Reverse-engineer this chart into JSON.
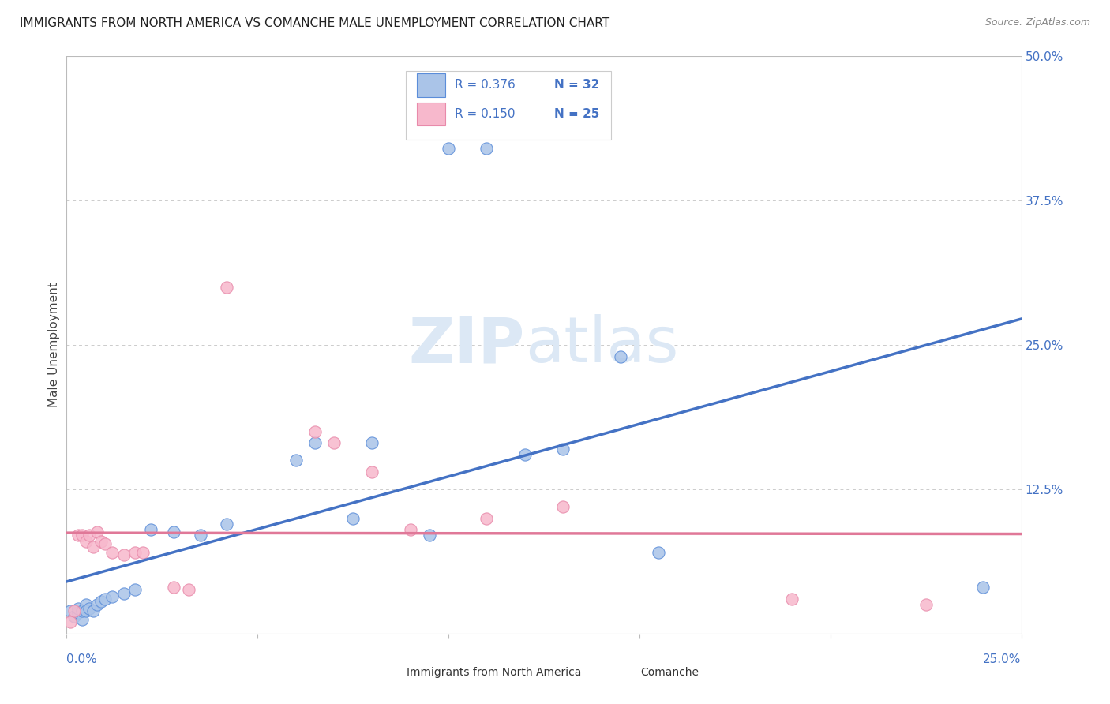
{
  "title": "IMMIGRANTS FROM NORTH AMERICA VS COMANCHE MALE UNEMPLOYMENT CORRELATION CHART",
  "source": "Source: ZipAtlas.com",
  "ylabel": "Male Unemployment",
  "ytick_values": [
    0.0,
    0.125,
    0.25,
    0.375,
    0.5
  ],
  "ytick_labels": [
    "",
    "12.5%",
    "25.0%",
    "37.5%",
    "50.0%"
  ],
  "xlim": [
    0.0,
    0.25
  ],
  "ylim": [
    0.0,
    0.5
  ],
  "blue_R": "0.376",
  "blue_N": "32",
  "pink_R": "0.150",
  "pink_N": "25",
  "blue_fill": "#aac4e8",
  "blue_edge": "#5b8dd9",
  "blue_line": "#4472c4",
  "pink_fill": "#f7b8cc",
  "pink_edge": "#e88aaa",
  "pink_line": "#e07898",
  "label_color": "#4472c4",
  "legend_label_blue": "Immigrants from North America",
  "legend_label_pink": "Comanche",
  "watermark_zip": "ZIP",
  "watermark_atlas": "atlas",
  "background_color": "#ffffff",
  "grid_color": "#cccccc",
  "blue_points": [
    [
      0.001,
      0.02
    ],
    [
      0.002,
      0.015
    ],
    [
      0.003,
      0.018
    ],
    [
      0.003,
      0.022
    ],
    [
      0.004,
      0.012
    ],
    [
      0.004,
      0.02
    ],
    [
      0.005,
      0.025
    ],
    [
      0.005,
      0.02
    ],
    [
      0.006,
      0.022
    ],
    [
      0.007,
      0.02
    ],
    [
      0.008,
      0.025
    ],
    [
      0.009,
      0.028
    ],
    [
      0.01,
      0.03
    ],
    [
      0.012,
      0.032
    ],
    [
      0.015,
      0.035
    ],
    [
      0.018,
      0.038
    ],
    [
      0.022,
      0.09
    ],
    [
      0.028,
      0.088
    ],
    [
      0.035,
      0.085
    ],
    [
      0.042,
      0.095
    ],
    [
      0.06,
      0.15
    ],
    [
      0.065,
      0.165
    ],
    [
      0.075,
      0.1
    ],
    [
      0.08,
      0.165
    ],
    [
      0.095,
      0.085
    ],
    [
      0.1,
      0.42
    ],
    [
      0.11,
      0.42
    ],
    [
      0.12,
      0.155
    ],
    [
      0.13,
      0.16
    ],
    [
      0.145,
      0.24
    ],
    [
      0.155,
      0.07
    ],
    [
      0.24,
      0.04
    ]
  ],
  "pink_points": [
    [
      0.001,
      0.01
    ],
    [
      0.002,
      0.02
    ],
    [
      0.003,
      0.085
    ],
    [
      0.004,
      0.085
    ],
    [
      0.005,
      0.08
    ],
    [
      0.006,
      0.085
    ],
    [
      0.007,
      0.075
    ],
    [
      0.008,
      0.088
    ],
    [
      0.009,
      0.08
    ],
    [
      0.01,
      0.078
    ],
    [
      0.012,
      0.07
    ],
    [
      0.015,
      0.068
    ],
    [
      0.018,
      0.07
    ],
    [
      0.02,
      0.07
    ],
    [
      0.028,
      0.04
    ],
    [
      0.032,
      0.038
    ],
    [
      0.042,
      0.3
    ],
    [
      0.065,
      0.175
    ],
    [
      0.07,
      0.165
    ],
    [
      0.08,
      0.14
    ],
    [
      0.09,
      0.09
    ],
    [
      0.11,
      0.1
    ],
    [
      0.13,
      0.11
    ],
    [
      0.19,
      0.03
    ],
    [
      0.225,
      0.025
    ]
  ]
}
